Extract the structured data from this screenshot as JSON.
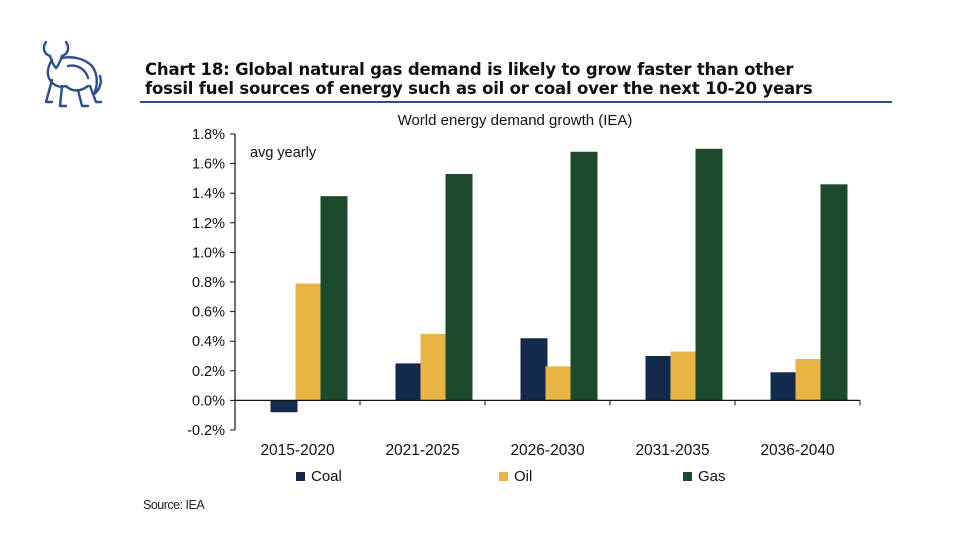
{
  "header": {
    "title_line1": "Chart 18: Global natural gas demand is likely to grow faster than other",
    "title_line2": "fossil fuel sources of energy such as oil or coal over the next 10-20 years",
    "brand_color": "#2f4d8c"
  },
  "chart_data": {
    "type": "bar",
    "title": "World energy demand growth (IEA)",
    "annotation": "avg yearly",
    "categories": [
      "2015-2020",
      "2021-2025",
      "2026-2030",
      "2031-2035",
      "2036-2040"
    ],
    "series": [
      {
        "name": "Coal",
        "color": "#142a4c",
        "values": [
          -0.08,
          0.25,
          0.42,
          0.3,
          0.19
        ]
      },
      {
        "name": "Oil",
        "color": "#e8b545",
        "values": [
          0.79,
          0.45,
          0.23,
          0.33,
          0.28
        ]
      },
      {
        "name": "Gas",
        "color": "#1c4a2a",
        "values": [
          1.38,
          1.53,
          1.68,
          1.7,
          1.46
        ]
      }
    ],
    "ylim": [
      -0.2,
      1.8
    ],
    "yticks": [
      "-0.2%",
      "0.0%",
      "0.2%",
      "0.4%",
      "0.6%",
      "0.8%",
      "1.0%",
      "1.2%",
      "1.4%",
      "1.6%",
      "1.8%"
    ],
    "xlabel": "",
    "ylabel": "",
    "legend_position": "bottom"
  },
  "footer": {
    "source": "Source: IEA"
  }
}
